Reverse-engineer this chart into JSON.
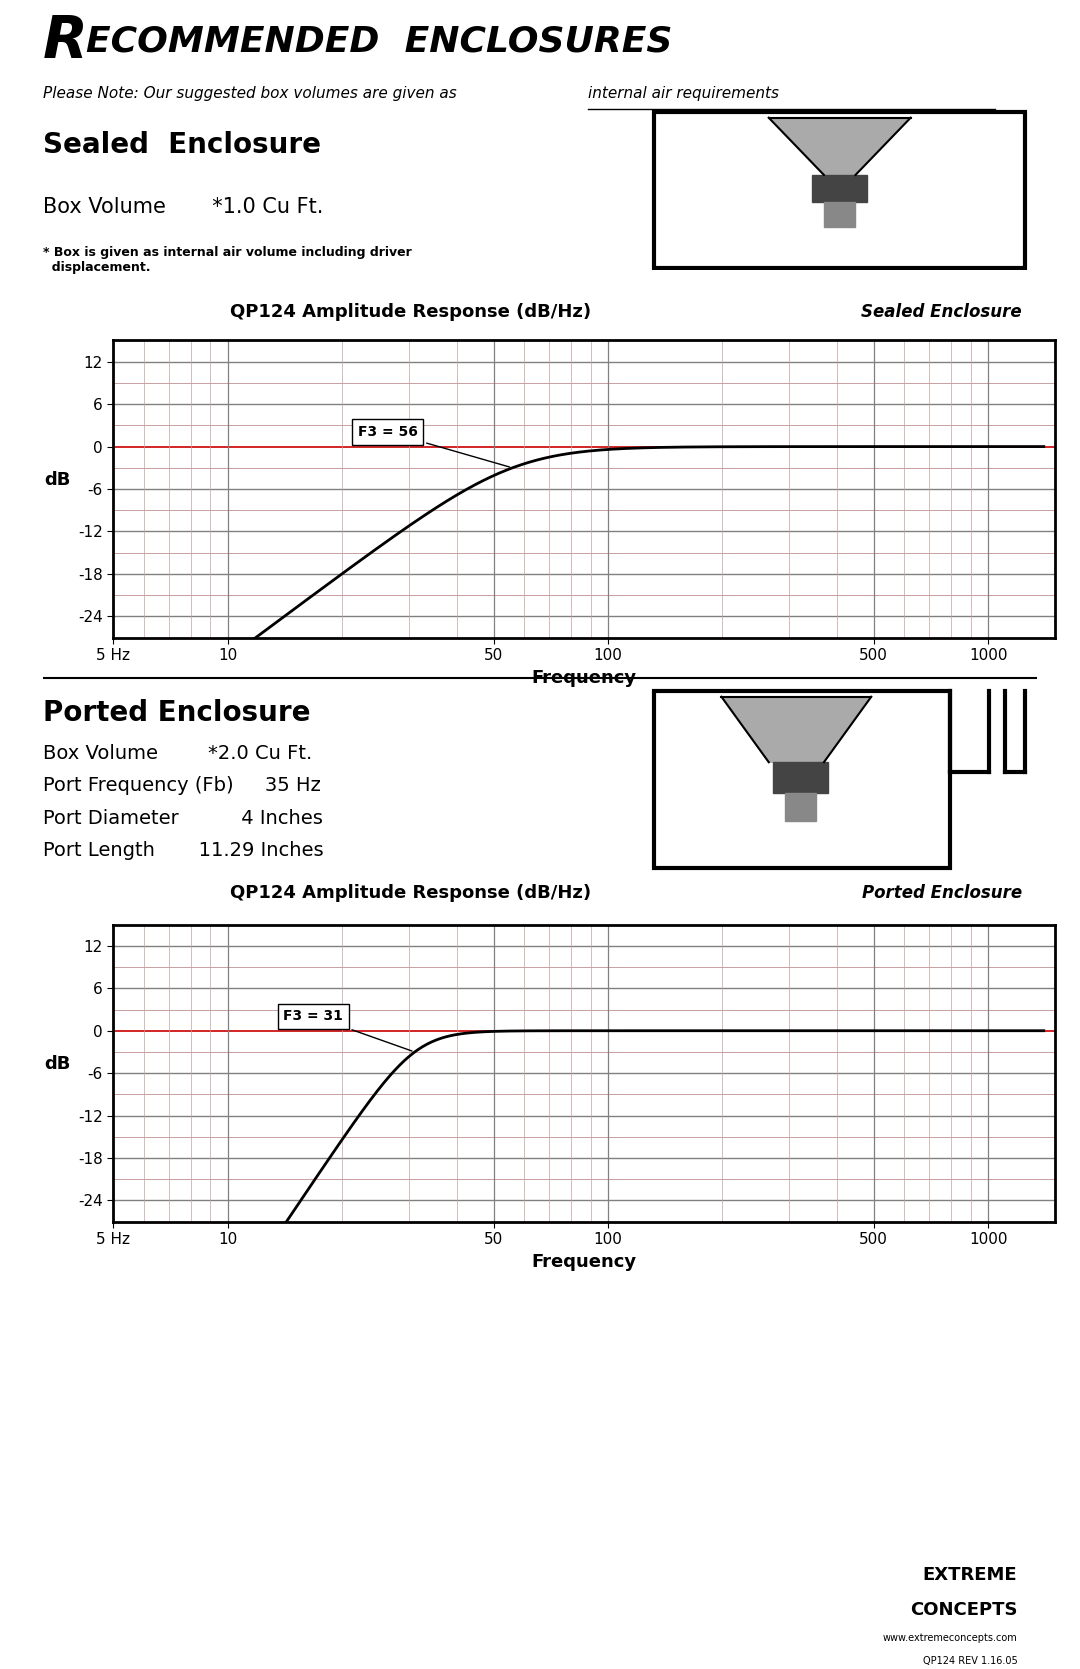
{
  "page_title_R": "R",
  "page_title_rest": "ECOMMENDED  ENCLOSURES",
  "subtitle_plain": "Please Note: Our suggested box volumes are given as ",
  "subtitle_underline": "internal air requirements",
  "section1_title": "Sealed  Enclosure",
  "section1_box_volume": "Box Volume       *1.0 Cu Ft.",
  "section1_note": "* Box is given as internal air volume including driver\n  displacement.",
  "section1_chart_title": "QP124 Amplitude Response (dB/Hz)",
  "section1_chart_subtitle": "Sealed Enclosure",
  "section1_annotation": "F3 = 56",
  "section1_f3": 56,
  "section2_title": "Ported Enclosure",
  "section2_lines": [
    "Box Volume        *2.0 Cu Ft.",
    "Port Frequency (Fb)     35 Hz",
    "Port Diameter          4 Inches",
    "Port Length       11.29 Inches"
  ],
  "section2_chart_title": "QP124 Amplitude Response (dB/Hz)",
  "section2_chart_subtitle": "Ported Enclosure",
  "section2_annotation": "F3 = 31",
  "section2_f3": 31,
  "freq_label": "Frequency",
  "ylabel": "dB",
  "yticks": [
    12,
    6,
    0,
    -6,
    -12,
    -18,
    -24
  ],
  "xtick_labels": [
    "5 Hz",
    "10",
    "50",
    "100",
    "500",
    "1000"
  ],
  "xtick_positions": [
    5,
    10,
    50,
    100,
    500,
    1000
  ],
  "bg_color": "#ffffff",
  "grid_color_major": "#808080",
  "grid_color_minor": "#c8a0a0",
  "line_color": "#000000",
  "highlight_line_color": "#cc0000",
  "chart_bg": "#ffffff",
  "footer_line1": "EXTREME",
  "footer_line2": "CONCEPTS",
  "footer_url": "www.extremeconcepts.com",
  "footer_rev": "QP124 REV 1.16.05"
}
